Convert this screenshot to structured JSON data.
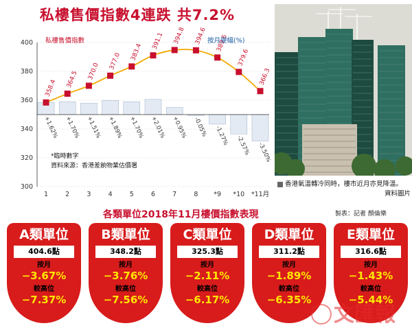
{
  "title": "私樓售價指數4連跌 共7.2%",
  "chart_data": {
    "type": "line+bar",
    "categories": [
      "1",
      "2",
      "3",
      "4",
      "5",
      "6",
      "7",
      "8",
      "*9",
      "*10",
      "*11月"
    ],
    "line_series": {
      "name": "私樓售價指數",
      "values": [
        358.4,
        364.5,
        370.0,
        377.0,
        383.4,
        391.1,
        394.8,
        394.6,
        389.6,
        379.6,
        366.3
      ],
      "labels": [
        "358.4",
        "364.5",
        "370.0",
        "377.0",
        "383.4",
        "391.1",
        "394.8",
        "394.6",
        "389.6",
        "379.6",
        "366.3"
      ]
    },
    "bar_series": {
      "name": "按月變幅(%)",
      "values": [
        1.62,
        1.7,
        1.51,
        1.89,
        1.7,
        2.01,
        0.95,
        -0.05,
        -1.27,
        -2.57,
        -3.5
      ],
      "labels": [
        "+1.62%",
        "+1.70%",
        "+1.51%",
        "+1.89%",
        "+1.70%",
        "+2.01%",
        "+0.95%",
        "-0.05%",
        "-1.27%",
        "-2.57%",
        "-3.50%"
      ]
    },
    "y_ticks": [
      "400",
      "380",
      "360",
      "340",
      "320",
      "300"
    ],
    "ylim": [
      300,
      400
    ],
    "notes": [
      "*臨時數字",
      "資料來源：香港差餉物業估價署"
    ],
    "colors": {
      "line": "#f2a900",
      "marker": "#c8102e",
      "bar_fill": "#e3eaf3",
      "bar_stroke": "#9bb0c8",
      "axis": "#333333"
    }
  },
  "photo": {
    "caption": "香港氣溫轉冷同時，樓市近月亦見降溫。",
    "credit": "資料圖片",
    "colors": {
      "sky": "#dcdcd4",
      "tower": "#2f6f61",
      "tower_dark": "#1e4b40",
      "crane": "#f4f4f0",
      "lowrise": "#c9c0b0",
      "tree": "#3d6a32"
    }
  },
  "section": {
    "title": "各類單位2018年11月樓價指數表現",
    "byline": "製表：記者 顏倫樂",
    "monthly_label": "按月",
    "peak_label": "較高位"
  },
  "cards": [
    {
      "name": "A類單位",
      "points": "404.6點",
      "monthly": "−3.67%",
      "from_peak": "−7.37%"
    },
    {
      "name": "B類單位",
      "points": "348.2點",
      "monthly": "−3.76%",
      "from_peak": "−7.56%"
    },
    {
      "name": "C類單位",
      "points": "325.3點",
      "monthly": "−2.11%",
      "from_peak": "−6.17%"
    },
    {
      "name": "D類單位",
      "points": "311.2點",
      "monthly": "−1.89%",
      "from_peak": "−6.35%"
    },
    {
      "name": "E類單位",
      "points": "316.6點",
      "monthly": "−1.43%",
      "from_peak": "−5.44%"
    }
  ],
  "logo": {
    "text": "文匯報",
    "color": "#e52b2b"
  }
}
